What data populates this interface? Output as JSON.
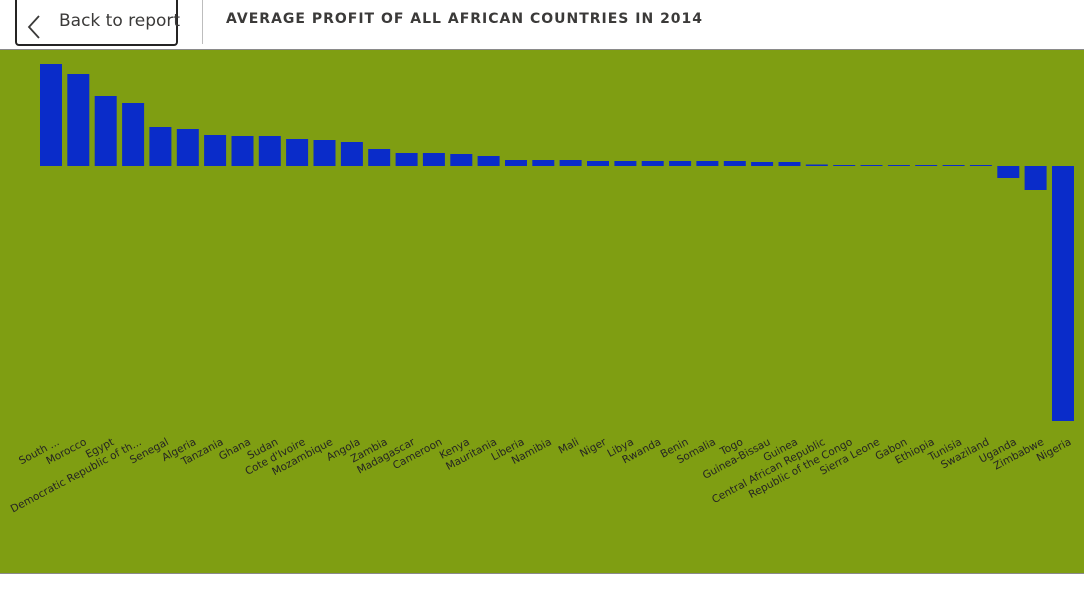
{
  "header": {
    "back_label": "Back to report",
    "title": "AVERAGE PROFIT OF ALL AFRICAN COUNTRIES IN 2014"
  },
  "colors": {
    "background": "#7f9e12",
    "bar": "#0a2cc9",
    "label": "#252423"
  },
  "chart_data": {
    "type": "bar",
    "title": "AVERAGE PROFIT OF ALL AFRICAN COUNTRIES IN 2014",
    "xlabel": "",
    "ylabel": "",
    "grid": false,
    "categories": [
      "South ...",
      "Morocco",
      "Egypt",
      "Democratic Republic of th...",
      "Senegal",
      "Algeria",
      "Tanzania",
      "Ghana",
      "Sudan",
      "Cote d'Ivoire",
      "Mozambique",
      "Angola",
      "Zambia",
      "Madagascar",
      "Cameroon",
      "Kenya",
      "Mauritania",
      "Liberia",
      "Namibia",
      "Mali",
      "Niger",
      "Libya",
      "Rwanda",
      "Benin",
      "Somalia",
      "Togo",
      "Guinea-Bissau",
      "Guinea",
      "Central African Republic",
      "Republic of the Congo",
      "Sierra Leone",
      "Gabon",
      "Ethiopia",
      "Tunisia",
      "Swaziland",
      "Uganda",
      "Zimbabwe",
      "Nigeria"
    ],
    "values": [
      102,
      92,
      70,
      63,
      39,
      37,
      31,
      30,
      30,
      27,
      26,
      24,
      17,
      13,
      13,
      12,
      10,
      6,
      6,
      6,
      5,
      5,
      5,
      5,
      5,
      5,
      4,
      4,
      1.5,
      1,
      1,
      1,
      1,
      1,
      0.5,
      -12,
      -24,
      -255
    ]
  }
}
